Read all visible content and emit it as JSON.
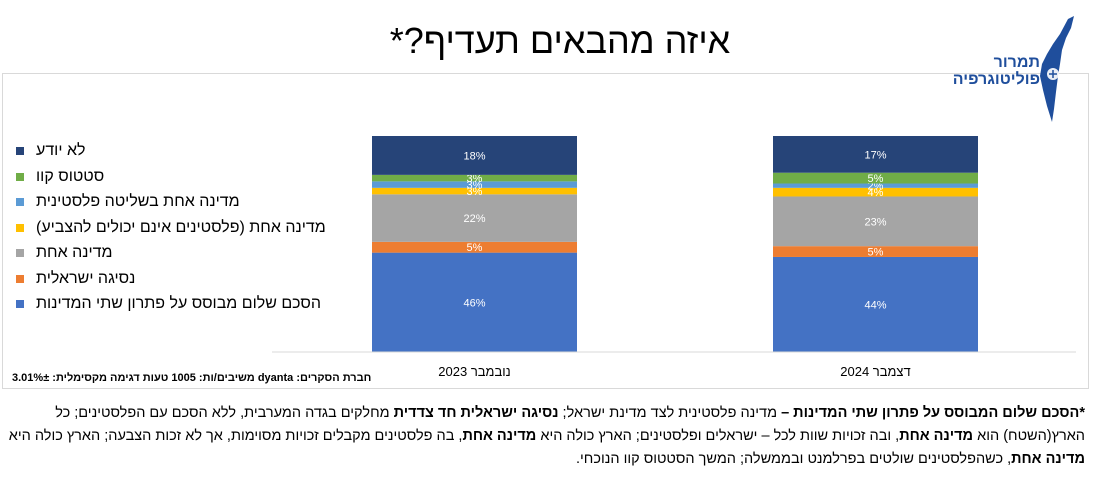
{
  "title": "איזה מהבאים תעדיף?*",
  "logo": {
    "line1": "תמרור",
    "line2": "פוליטוגרפיה"
  },
  "source_note": "חברת הסקרים: dyanta משיבים/ות: 1005 טעות דגימה מקסימלית: 3.01%±",
  "footnote": {
    "p1": "*",
    "p2": "הסכם שלום המבוסס על פתרון שתי המדינות –",
    "p3": " מדינה פלסטינית לצד מדינת ישראל; ",
    "p4": "נסיגה ישראלית חד צדדית",
    "p5": " מחלקים בגדה המערבית, ללא הסכם עם הפלסטינים; כל הארץ(השטח) הוא ",
    "p6": "מדינה אחת",
    "p7": ", ובה זכויות שוות לכל – ישראלים ופלסטינים; הארץ כולה היא ",
    "p8": "מדינה אחת",
    "p9": ", בה פלסטינים מקבלים זכויות מסוימות, אך לא זכות הצבעה; הארץ כולה היא ",
    "p10": "מדינה אחת",
    "p11": ", כשהפלסטינים שולטים בפרלמנט ובממשלה; המשך הסטטוס קוו הנוכחי."
  },
  "colors": {
    "two_state": "#4472c4",
    "unilateral": "#ed7d31",
    "one_state": "#a5a5a5",
    "one_state_no_vote": "#ffc000",
    "palestinian_rule": "#5b9bd5",
    "status_quo": "#70ad47",
    "dont_know": "#264478"
  },
  "chart_data": {
    "type": "bar",
    "stacked": true,
    "categories": [
      "נובמבר 2023",
      "דצמבר 2024"
    ],
    "ylim": [
      0,
      100
    ],
    "series": [
      {
        "name": "הסכם שלום מבוסס על פתרון שתי המדינות",
        "color": "#4472c4",
        "values": [
          46,
          44
        ],
        "labels": [
          "46%",
          "44%"
        ]
      },
      {
        "name": "נסיגה ישראלית",
        "color": "#ed7d31",
        "values": [
          5,
          5
        ],
        "labels": [
          "5%",
          "5%"
        ]
      },
      {
        "name": "מדינה אחת",
        "color": "#a5a5a5",
        "values": [
          22,
          23
        ],
        "labels": [
          "22%",
          "23%"
        ]
      },
      {
        "name": "מדינה אחת (פלסטינים אינם יכולים להצביע)",
        "color": "#ffc000",
        "values": [
          3,
          4
        ],
        "labels": [
          "3%",
          "4%"
        ]
      },
      {
        "name": "מדינה אחת בשליטה פלסטינית",
        "color": "#5b9bd5",
        "values": [
          3,
          2
        ],
        "labels": [
          "3%",
          "2%"
        ]
      },
      {
        "name": "סטטוס קוו",
        "color": "#70ad47",
        "values": [
          3,
          5
        ],
        "labels": [
          "3%",
          "5%"
        ]
      },
      {
        "name": "לא יודע",
        "color": "#264478",
        "values": [
          18,
          17
        ],
        "labels": [
          "18%",
          "17%"
        ]
      }
    ],
    "legend_position": "left",
    "grid": false
  }
}
